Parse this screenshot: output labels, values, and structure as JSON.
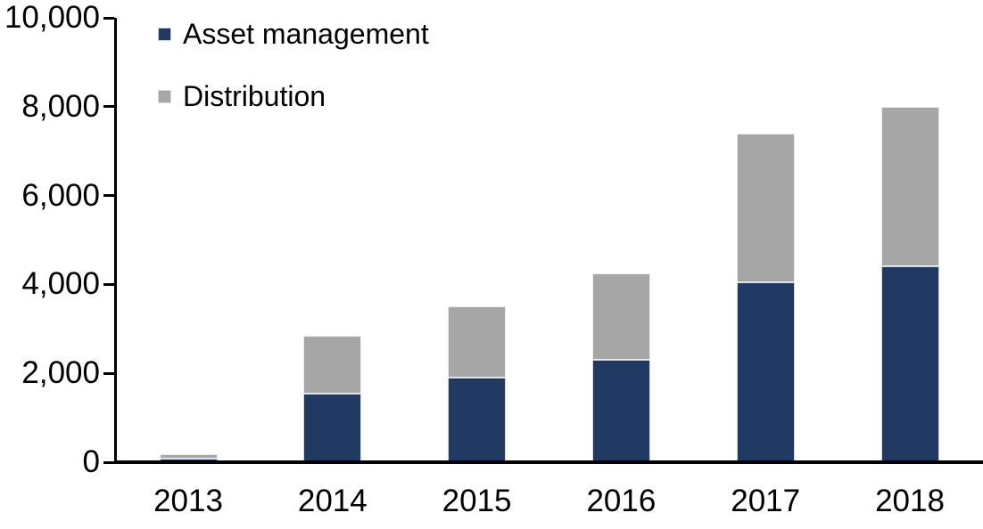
{
  "chart_data": {
    "type": "bar",
    "variant": "stacked-column",
    "title": "",
    "xlabel": "",
    "ylabel": "",
    "categories": [
      "2013",
      "2014",
      "2015",
      "2016",
      "2017",
      "2018"
    ],
    "series": [
      {
        "name": "Asset management",
        "color": "#213A63",
        "values": [
          80,
          1550,
          1900,
          2300,
          4050,
          4400
        ]
      },
      {
        "name": "Distribution",
        "color": "#A6A6A6",
        "values": [
          100,
          1300,
          1600,
          1950,
          3350,
          3600
        ]
      }
    ],
    "ylim": [
      0,
      10000
    ],
    "ytick_step": 2000,
    "ytick_labels": [
      "0",
      "2,000",
      "4,000",
      "6,000",
      "8,000",
      "10,000"
    ],
    "grid": false,
    "legend_position": "top-left",
    "axis_color": "#000000",
    "background_color": "#FFFFFF"
  }
}
